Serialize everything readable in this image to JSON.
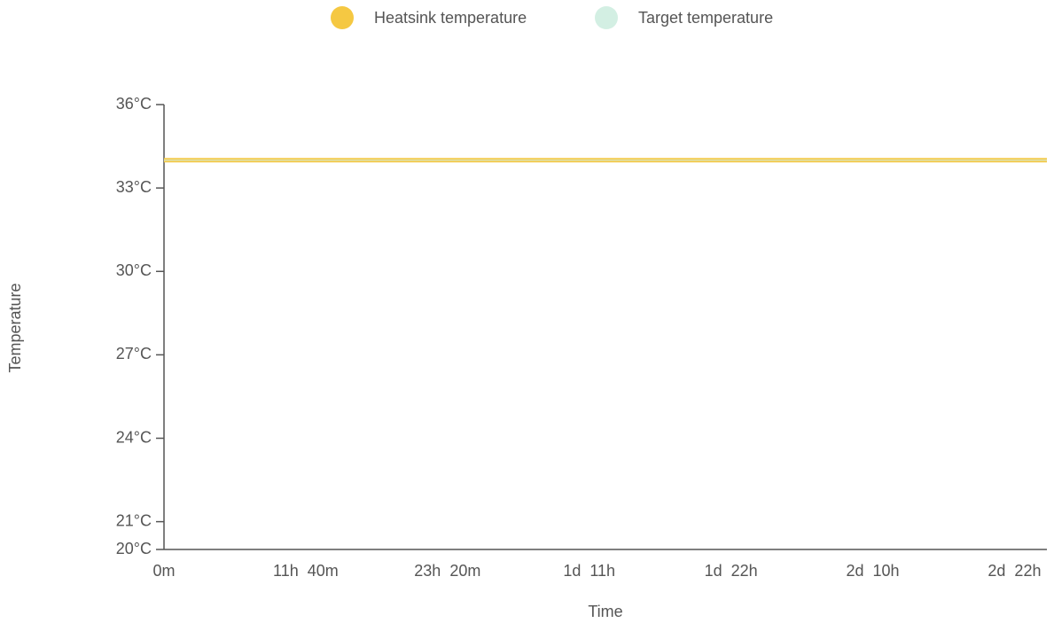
{
  "chart_data": {
    "type": "line",
    "x_label": "Time",
    "y_label": "Temperature",
    "x": [
      0,
      4360
    ],
    "series": [
      {
        "name": "Heatsink temperature",
        "color": "#f5c842",
        "values": [
          34,
          34
        ]
      },
      {
        "name": "Target temperature",
        "color": "#d3efe3",
        "values": [
          34,
          34
        ]
      }
    ],
    "xlim": [
      0,
      4360
    ],
    "xticks": [
      {
        "value": 0,
        "label": "0m"
      },
      {
        "value": 700,
        "label": "11h  40m"
      },
      {
        "value": 1400,
        "label": "23h  20m"
      },
      {
        "value": 2100,
        "label": "1d  11h"
      },
      {
        "value": 2800,
        "label": "1d  22h"
      },
      {
        "value": 3500,
        "label": "2d  10h"
      },
      {
        "value": 4200,
        "label": "2d  22h"
      }
    ],
    "ylim": [
      20,
      36
    ],
    "yticks": [
      {
        "value": 20,
        "label": "20°C"
      },
      {
        "value": 21,
        "label": "21°C"
      },
      {
        "value": 24,
        "label": "24°C"
      },
      {
        "value": 27,
        "label": "27°C"
      },
      {
        "value": 30,
        "label": "30°C"
      },
      {
        "value": 33,
        "label": "33°C"
      },
      {
        "value": 36,
        "label": "36°C"
      }
    ],
    "legend": "top"
  }
}
